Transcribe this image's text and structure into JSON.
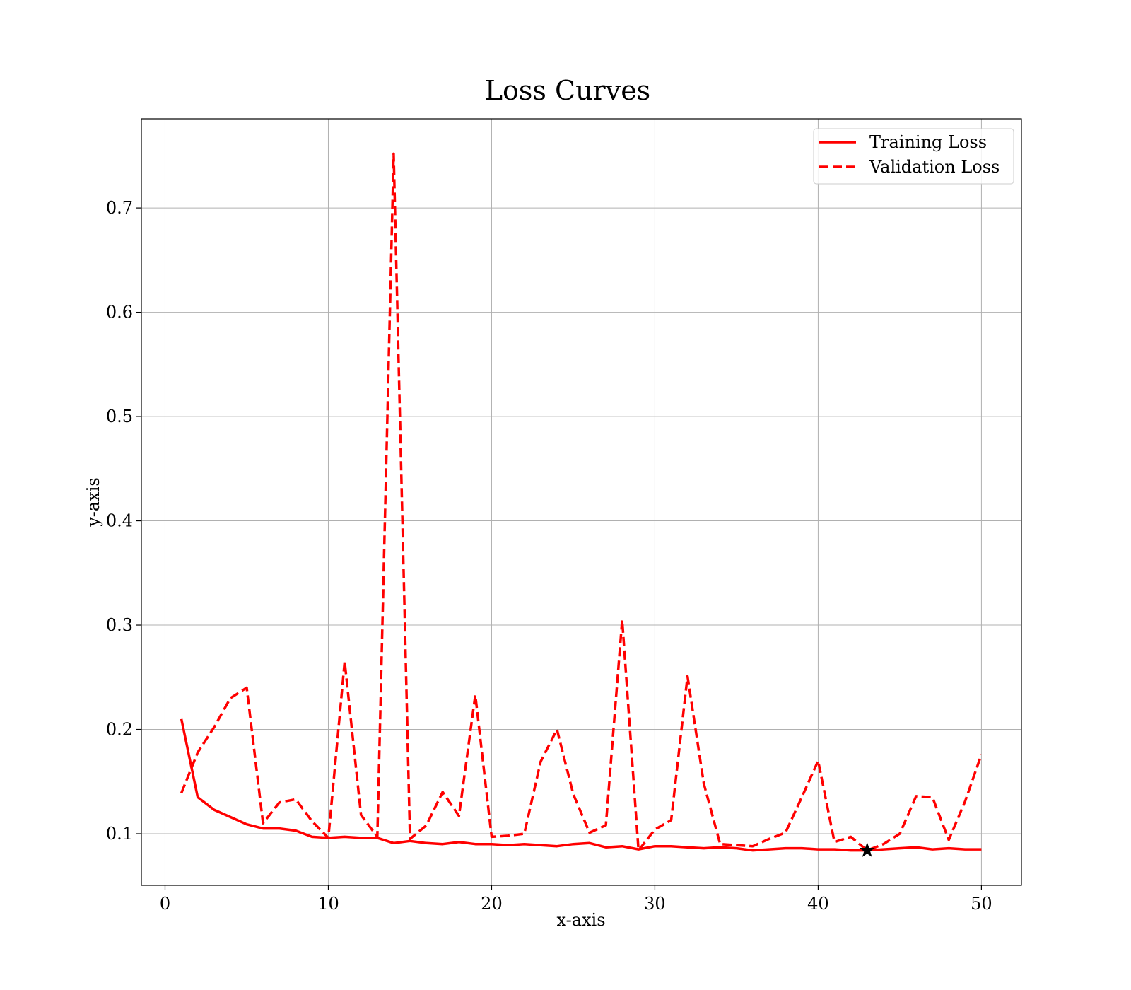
{
  "chart_data": {
    "type": "line",
    "title": "Loss Curves",
    "xlabel": "x-axis",
    "ylabel": "y-axis",
    "xlim": [
      -1.45,
      52.45
    ],
    "ylim": [
      0.0505,
      0.7855
    ],
    "xticks": [
      0,
      10,
      20,
      30,
      40,
      50
    ],
    "yticks": [
      0.1,
      0.2,
      0.3,
      0.4,
      0.5,
      0.6,
      0.7
    ],
    "grid": true,
    "legend_position": "top-right",
    "x": [
      1,
      2,
      3,
      4,
      5,
      6,
      7,
      8,
      9,
      10,
      11,
      12,
      13,
      14,
      15,
      16,
      17,
      18,
      19,
      20,
      21,
      22,
      23,
      24,
      25,
      26,
      27,
      28,
      29,
      30,
      31,
      32,
      33,
      34,
      35,
      36,
      37,
      38,
      39,
      40,
      41,
      42,
      43,
      44,
      45,
      46,
      47,
      48,
      49,
      50
    ],
    "series": [
      {
        "name": "Training Loss",
        "style": "solid",
        "color": "#ff0000",
        "values": [
          0.21,
          0.135,
          0.123,
          0.116,
          0.109,
          0.105,
          0.105,
          0.103,
          0.097,
          0.096,
          0.097,
          0.096,
          0.096,
          0.091,
          0.093,
          0.091,
          0.09,
          0.092,
          0.09,
          0.09,
          0.089,
          0.09,
          0.089,
          0.088,
          0.09,
          0.091,
          0.087,
          0.088,
          0.085,
          0.088,
          0.088,
          0.087,
          0.086,
          0.087,
          0.086,
          0.084,
          0.085,
          0.086,
          0.086,
          0.085,
          0.085,
          0.084,
          0.084,
          0.085,
          0.086,
          0.087,
          0.085,
          0.086,
          0.085,
          0.085
        ]
      },
      {
        "name": "Validation Loss",
        "style": "dashed",
        "color": "#ff0000",
        "values": [
          0.139,
          0.178,
          0.202,
          0.23,
          0.24,
          0.11,
          0.13,
          0.133,
          0.112,
          0.096,
          0.265,
          0.118,
          0.097,
          0.752,
          0.095,
          0.108,
          0.14,
          0.117,
          0.233,
          0.097,
          0.098,
          0.1,
          0.169,
          0.2,
          0.138,
          0.101,
          0.108,
          0.305,
          0.084,
          0.104,
          0.113,
          0.251,
          0.148,
          0.09,
          0.089,
          0.088,
          0.095,
          0.101,
          0.135,
          0.17,
          0.092,
          0.097,
          0.084,
          0.09,
          0.1,
          0.136,
          0.135,
          0.094,
          0.131,
          0.176
        ]
      }
    ],
    "marker": {
      "shape": "star",
      "x": 43,
      "y": 0.084,
      "color": "#000000"
    }
  }
}
